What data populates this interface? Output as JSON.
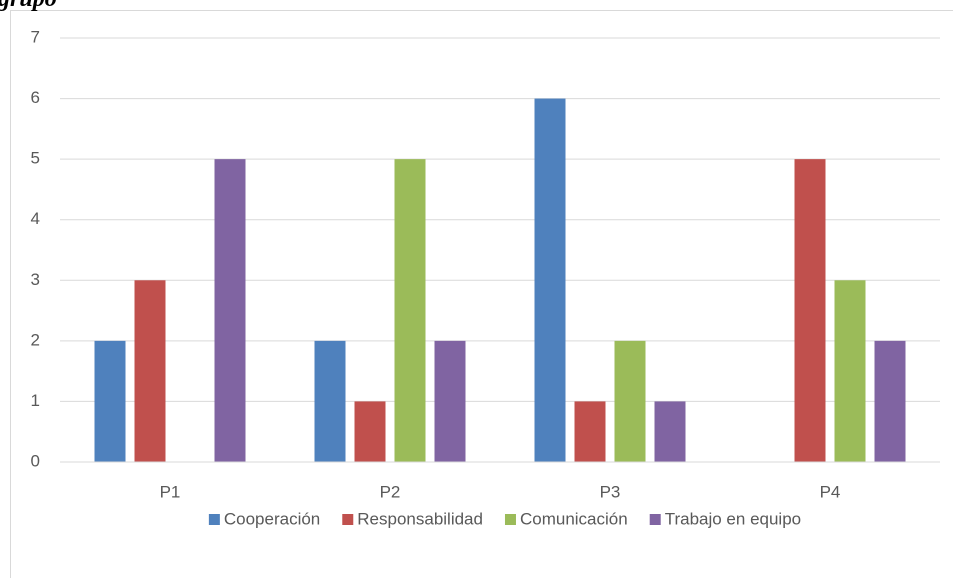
{
  "chart_data": {
    "type": "bar",
    "title": "grupo",
    "categories": [
      "P1",
      "P2",
      "P3",
      "P4"
    ],
    "series": [
      {
        "name": "Cooperación",
        "color": "#4f81bd",
        "values": [
          2,
          2,
          6,
          0
        ]
      },
      {
        "name": "Responsabilidad",
        "color": "#c0504d",
        "values": [
          3,
          1,
          1,
          5
        ]
      },
      {
        "name": "Comunicación",
        "color": "#9bbb59",
        "values": [
          0,
          5,
          2,
          3
        ]
      },
      {
        "name": "Trabajo en equipo",
        "color": "#8064a2",
        "values": [
          5,
          2,
          1,
          2
        ]
      }
    ],
    "ylim": [
      0,
      7
    ],
    "yticks": [
      0,
      1,
      2,
      3,
      4,
      5,
      6,
      7
    ],
    "grid": true,
    "legend": "bottom"
  }
}
